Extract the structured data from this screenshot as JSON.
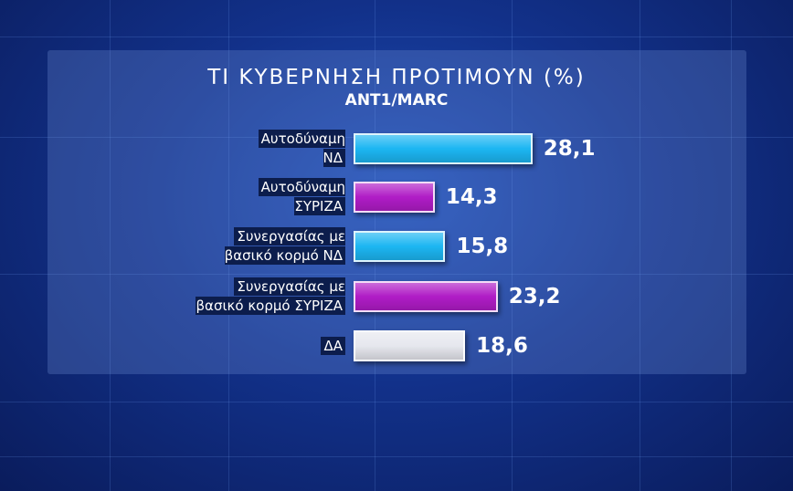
{
  "chart_data": {
    "type": "bar",
    "orientation": "horizontal",
    "title": "ΤΙ ΚΥΒΕΡΝΗΣΗ ΠΡΟΤΙΜΟΥΝ (%)",
    "subtitle": "ANT1/MARC",
    "categories": [
      "Αυτοδύναμη\nΝΔ",
      "Αυτοδύναμη\nΣΥΡΙΖΑ",
      "Συνεργασίας με\nβασικό κορμό ΝΔ",
      "Συνεργασίας με\nβασικό κορμό ΣΥΡΙΖΑ",
      "ΔΑ"
    ],
    "values": [
      28.1,
      14.3,
      15.8,
      23.2,
      18.6
    ],
    "value_labels": [
      "28,1",
      "14,3",
      "15,8",
      "23,2",
      "18,6"
    ],
    "colors": [
      "#1cb6f2",
      "#b01cc6",
      "#1cb6f2",
      "#b01cc6",
      "#e6e7ee"
    ]
  }
}
